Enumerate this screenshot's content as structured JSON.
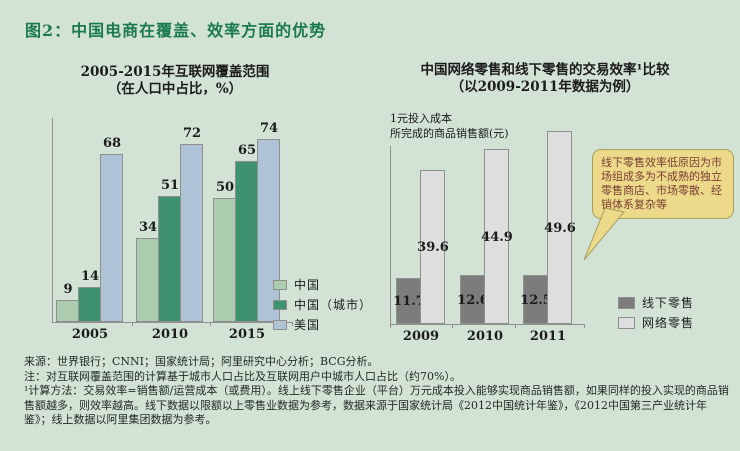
{
  "figure_title": "图2：中国电商在覆盖、效率方面的优势",
  "colors": {
    "background": "#d2e3d5",
    "title_green": "#1b7a4e",
    "axis": "#8f8f8f",
    "callout_bg": "#ecd98a",
    "callout_border": "#a89f5e",
    "callout_text": "#7a4034"
  },
  "chart_data": [
    {
      "type": "bar",
      "title": "2005-2015年互联网覆盖范围",
      "subtitle": "（在人口中占比，%）",
      "categories": [
        "2005",
        "2010",
        "2015"
      ],
      "series": [
        {
          "name": "中国",
          "color": "#abccaf",
          "values": [
            9,
            34,
            50
          ]
        },
        {
          "name": "中国（城市）",
          "color": "#3e9270",
          "values": [
            14,
            51,
            65
          ]
        },
        {
          "name": "美国",
          "color": "#aec3d5",
          "values": [
            68,
            72,
            74
          ]
        }
      ],
      "ylim": [
        0,
        82
      ],
      "value_labels": "above",
      "legend_position": "right-bottom",
      "grid": false
    },
    {
      "type": "bar",
      "title": "中国网络零售和线下零售的交易效率¹比较",
      "subtitle": "（以2009-2011年数据为例）",
      "ylabel_line1": "1元投入成本",
      "ylabel_line2": "所完成的商品销售额(元)",
      "categories": [
        "2009",
        "2010",
        "2011"
      ],
      "series": [
        {
          "name": "线下零售",
          "color": "#7c7c7c",
          "values": [
            11.7,
            12.6,
            12.5
          ]
        },
        {
          "name": "网络零售",
          "color": "#dedede",
          "values": [
            39.6,
            44.9,
            49.6
          ]
        }
      ],
      "ylim": [
        0,
        50
      ],
      "value_labels": "inside-center",
      "legend_position": "right-bottom",
      "grid": false,
      "annotation": "线下零售效率低原因为市场组成多为不成熟的独立零售商店、市场零散、经销体系复杂等"
    }
  ],
  "footnotes": {
    "source": "来源：世界银行；CNNI；国家统计局；阿里研究中心分析；BCG分析。",
    "note": "注：对互联网覆盖范围的计算基于城市人口占比及互联网用户中城市人口占比（约70%）。",
    "method": "¹计算方法：交易效率=销售额/运营成本（或费用）。线上线下零售企业（平台）万元成本投入能够实现商品销售额，如果同样的投入实现的商品销售额越多，则效率越高。线下数据以限额以上零售业数据为参考，数据来源于国家统计局《2012中国统计年鉴》，《2012中国第三产业统计年鉴》；线上数据以阿里集团数据为参考。"
  }
}
